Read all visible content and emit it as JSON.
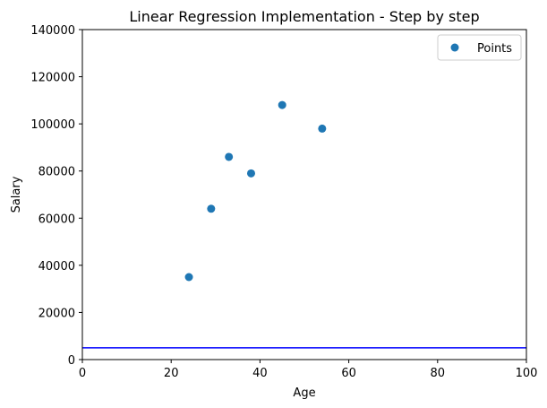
{
  "chart_data": {
    "type": "scatter",
    "title": "Linear Regression Implementation - Step by step",
    "xlabel": "Age",
    "ylabel": "Salary",
    "xlim": [
      0,
      100
    ],
    "ylim": [
      0,
      140000
    ],
    "xticks": [
      0,
      20,
      40,
      60,
      80,
      100
    ],
    "yticks": [
      0,
      20000,
      40000,
      60000,
      80000,
      100000,
      120000,
      140000
    ],
    "grid": false,
    "legend_position": "top-right",
    "series": [
      {
        "name": "Points",
        "color": "#1f77b4",
        "marker": "circle",
        "points": [
          {
            "x": 24,
            "y": 35000
          },
          {
            "x": 29,
            "y": 64000
          },
          {
            "x": 33,
            "y": 86000
          },
          {
            "x": 38,
            "y": 79000
          },
          {
            "x": 45,
            "y": 108000
          },
          {
            "x": 54,
            "y": 98000
          }
        ]
      }
    ],
    "hline": {
      "y": 5000,
      "color": "#0000ff"
    }
  }
}
